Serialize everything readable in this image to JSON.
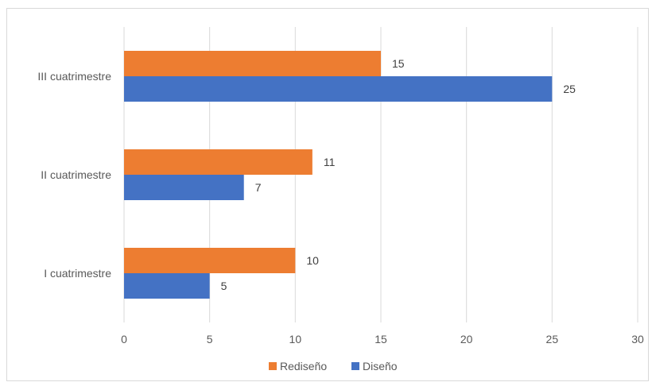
{
  "chart_data": {
    "type": "bar",
    "orientation": "horizontal",
    "categories": [
      "I cuatrimestre",
      "II cuatrimestre",
      "III cuatrimestre"
    ],
    "series": [
      {
        "name": "Rediseño",
        "values": [
          10,
          11,
          15
        ],
        "color": "#ED7D31"
      },
      {
        "name": "Diseño",
        "values": [
          5,
          7,
          25
        ],
        "color": "#4472C4"
      }
    ],
    "xlim": [
      0,
      30
    ],
    "ticks": [
      0,
      5,
      10,
      15,
      20,
      25,
      30
    ],
    "grid": true,
    "legend_position": "bottom",
    "data_labels": true
  }
}
